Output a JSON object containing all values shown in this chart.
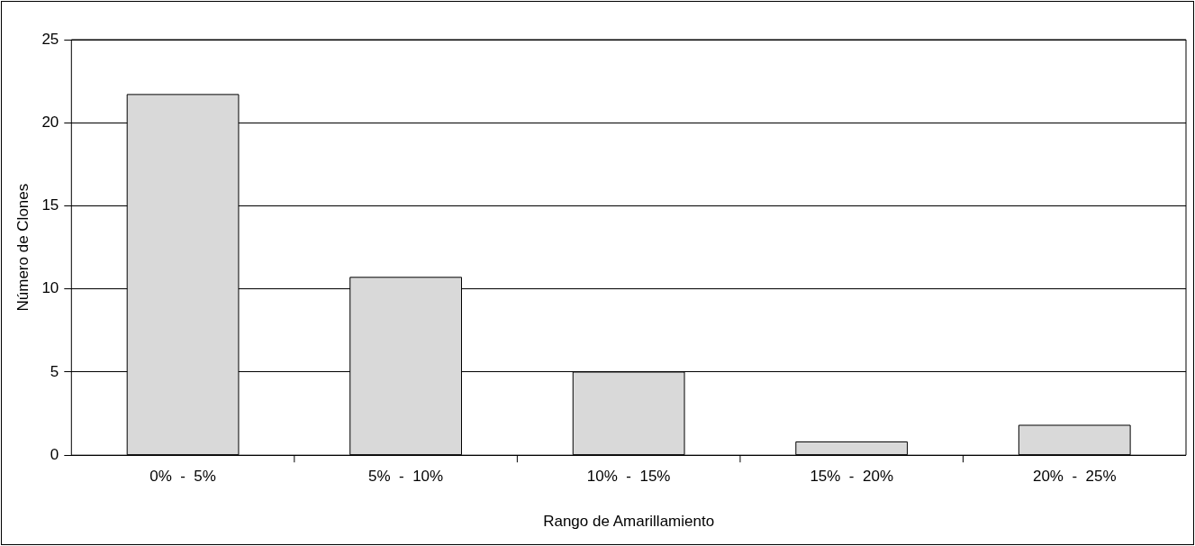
{
  "chart_data": {
    "type": "bar",
    "xlabel": "Rango de Amarillamiento",
    "ylabel": "Número de Clones",
    "categories": [
      "0%  -  5%",
      "5%  -  10%",
      "10%  -  15%",
      "15%  -  20%",
      "20%  -  25%"
    ],
    "values": [
      21.7,
      10.7,
      5,
      0.8,
      1.8
    ],
    "color": "#d9d9d9",
    "ylim": [
      0,
      25
    ],
    "yticks": [
      0,
      5,
      10,
      15,
      20,
      25
    ],
    "grid": "y",
    "legend": false
  }
}
